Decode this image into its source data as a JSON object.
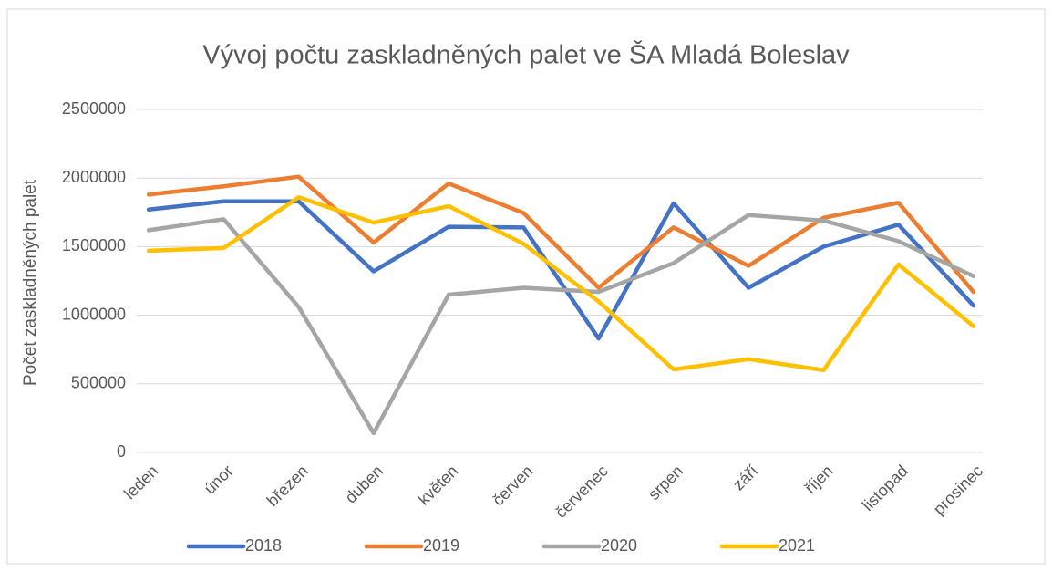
{
  "chart_data": {
    "type": "line",
    "title": "Vývoj počtu zaskladněných palet ve ŠA Mladá Boleslav",
    "y_label": "Počet zaskladněných palet",
    "categories": [
      "leden",
      "únor",
      "březen",
      "duben",
      "květen",
      "červen",
      "červenec",
      "srpen",
      "září",
      "říjen",
      "listopad",
      "prosinec"
    ],
    "series": [
      {
        "name": "2018",
        "color": "#4472c4",
        "values": [
          1770000,
          1830000,
          1830000,
          1320000,
          1645000,
          1640000,
          830000,
          1815000,
          1200000,
          1500000,
          1660000,
          1070000
        ]
      },
      {
        "name": "2019",
        "color": "#ed7d31",
        "values": [
          1880000,
          1940000,
          2010000,
          1530000,
          1960000,
          1745000,
          1200000,
          1640000,
          1360000,
          1710000,
          1820000,
          1170000
        ]
      },
      {
        "name": "2020",
        "color": "#a5a5a5",
        "values": [
          1620000,
          1700000,
          1060000,
          140000,
          1150000,
          1200000,
          1170000,
          1380000,
          1730000,
          1690000,
          1540000,
          1285000
        ]
      },
      {
        "name": "2021",
        "color": "#ffc000",
        "values": [
          1470000,
          1490000,
          1860000,
          1675000,
          1795000,
          1520000,
          1100000,
          605000,
          680000,
          600000,
          1370000,
          920000
        ]
      }
    ],
    "ylim": [
      0,
      2500000
    ],
    "yticks": [
      0,
      500000,
      1000000,
      1500000,
      2000000,
      2500000
    ],
    "grid": true,
    "legend": "bottom"
  }
}
